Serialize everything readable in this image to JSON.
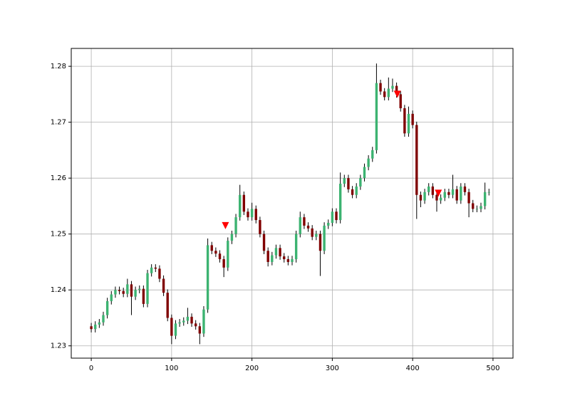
{
  "chart_data": {
    "type": "candlestick",
    "x": [
      0,
      5,
      10,
      15,
      20,
      25,
      30,
      35,
      40,
      45,
      50,
      55,
      60,
      65,
      70,
      75,
      80,
      85,
      90,
      95,
      100,
      105,
      110,
      115,
      120,
      125,
      130,
      135,
      140,
      145,
      150,
      155,
      160,
      165,
      170,
      175,
      180,
      185,
      190,
      195,
      200,
      205,
      210,
      215,
      220,
      225,
      230,
      235,
      240,
      245,
      250,
      255,
      260,
      265,
      270,
      275,
      280,
      285,
      290,
      295,
      300,
      305,
      310,
      315,
      320,
      325,
      330,
      335,
      340,
      345,
      350,
      355,
      360,
      365,
      370,
      375,
      380,
      385,
      390,
      395,
      400,
      405,
      410,
      415,
      420,
      425,
      430,
      435,
      440,
      445,
      450,
      455,
      460,
      465,
      470,
      475,
      480,
      485,
      490,
      495
    ],
    "open": [
      1.2335,
      1.233,
      1.2338,
      1.2342,
      1.2355,
      1.238,
      1.2392,
      1.24,
      1.2398,
      1.2393,
      1.241,
      1.2388,
      1.24,
      1.2402,
      1.2375,
      1.243,
      1.244,
      1.2438,
      1.242,
      1.2395,
      1.235,
      1.2318,
      1.234,
      1.2342,
      1.2345,
      1.2352,
      1.234,
      1.2335,
      1.2322,
      1.2365,
      1.248,
      1.247,
      1.2465,
      1.2455,
      1.244,
      1.2488,
      1.25,
      1.253,
      1.257,
      1.254,
      1.253,
      1.2545,
      1.2525,
      1.25,
      1.247,
      1.245,
      1.2462,
      1.2475,
      1.246,
      1.2455,
      1.245,
      1.2455,
      1.25,
      1.253,
      1.2515,
      1.251,
      1.2495,
      1.25,
      1.247,
      1.2515,
      1.252,
      1.254,
      1.2525,
      1.259,
      1.26,
      1.258,
      1.257,
      1.2585,
      1.26,
      1.262,
      1.2635,
      1.265,
      1.277,
      1.2755,
      1.2745,
      1.276,
      1.2765,
      1.275,
      1.2725,
      1.268,
      1.2715,
      1.2695,
      1.257,
      1.256,
      1.2575,
      1.2585,
      1.257,
      1.256,
      1.2565,
      1.2575,
      1.257,
      1.258,
      1.256,
      1.2585,
      1.2575,
      1.2555,
      1.2545,
      1.2545,
      1.255,
      1.2575
    ],
    "high": [
      1.2341,
      1.2344,
      1.2348,
      1.2361,
      1.2386,
      1.2398,
      1.2406,
      1.2406,
      1.2404,
      1.242,
      1.2416,
      1.2406,
      1.2408,
      1.2408,
      1.2436,
      1.2446,
      1.2446,
      1.2444,
      1.2426,
      1.2401,
      1.2356,
      1.2346,
      1.2348,
      1.2351,
      1.2368,
      1.2358,
      1.2346,
      1.2341,
      1.2371,
      1.2492,
      1.2486,
      1.2476,
      1.2471,
      1.2461,
      1.2494,
      1.2506,
      1.2536,
      1.2588,
      1.2576,
      1.2546,
      1.2556,
      1.2551,
      1.2531,
      1.2506,
      1.2476,
      1.2468,
      1.2481,
      1.2481,
      1.2466,
      1.2461,
      1.2461,
      1.2506,
      1.254,
      1.2536,
      1.2521,
      1.2516,
      1.2506,
      1.2506,
      1.2521,
      1.2526,
      1.2546,
      1.2546,
      1.261,
      1.2606,
      1.2606,
      1.2586,
      1.2591,
      1.2606,
      1.2626,
      1.2641,
      1.2656,
      1.2805,
      1.2776,
      1.2761,
      1.278,
      1.2778,
      1.2771,
      1.2756,
      1.2731,
      1.2728,
      1.2721,
      1.2701,
      1.2576,
      1.2581,
      1.2591,
      1.2591,
      1.2576,
      1.2571,
      1.2581,
      1.2581,
      1.2606,
      1.2586,
      1.2591,
      1.2591,
      1.2581,
      1.2561,
      1.2551,
      1.2556,
      1.2592,
      1.2581
    ],
    "low": [
      1.2324,
      1.2324,
      1.2332,
      1.2336,
      1.2349,
      1.2374,
      1.2386,
      1.2392,
      1.2387,
      1.2387,
      1.2355,
      1.2382,
      1.2394,
      1.2369,
      1.2369,
      1.2424,
      1.2432,
      1.2414,
      1.2389,
      1.2344,
      1.2303,
      1.2312,
      1.2334,
      1.2336,
      1.2339,
      1.2334,
      1.2329,
      1.2303,
      1.2316,
      1.2359,
      1.2464,
      1.2459,
      1.2449,
      1.2423,
      1.2434,
      1.2482,
      1.2494,
      1.2524,
      1.2534,
      1.2524,
      1.2524,
      1.2519,
      1.2494,
      1.2464,
      1.2442,
      1.2444,
      1.2456,
      1.2454,
      1.2449,
      1.2444,
      1.2444,
      1.2449,
      1.2494,
      1.2509,
      1.2504,
      1.2489,
      1.2489,
      1.2425,
      1.2464,
      1.2509,
      1.2514,
      1.2519,
      1.2519,
      1.2584,
      1.2574,
      1.2564,
      1.2564,
      1.2579,
      1.2594,
      1.2614,
      1.2629,
      1.2644,
      1.2749,
      1.2739,
      1.2739,
      1.2754,
      1.2744,
      1.2719,
      1.2674,
      1.2674,
      1.2689,
      1.2527,
      1.2548,
      1.2554,
      1.2569,
      1.2564,
      1.254,
      1.2554,
      1.2559,
      1.2564,
      1.2564,
      1.2554,
      1.2554,
      1.2569,
      1.253,
      1.2539,
      1.2539,
      1.2539,
      1.2544,
      1.2569
    ],
    "close": [
      1.233,
      1.2338,
      1.2342,
      1.2355,
      1.238,
      1.2392,
      1.24,
      1.2398,
      1.2393,
      1.241,
      1.2388,
      1.24,
      1.2402,
      1.2375,
      1.243,
      1.244,
      1.2438,
      1.242,
      1.2395,
      1.235,
      1.2318,
      1.234,
      1.2342,
      1.2345,
      1.2352,
      1.234,
      1.2335,
      1.2322,
      1.2365,
      1.248,
      1.247,
      1.2465,
      1.2455,
      1.244,
      1.2488,
      1.25,
      1.253,
      1.257,
      1.254,
      1.253,
      1.2545,
      1.2525,
      1.25,
      1.247,
      1.245,
      1.2462,
      1.2475,
      1.246,
      1.2455,
      1.245,
      1.2455,
      1.25,
      1.253,
      1.2515,
      1.251,
      1.2495,
      1.25,
      1.247,
      1.2515,
      1.252,
      1.254,
      1.2525,
      1.259,
      1.26,
      1.258,
      1.257,
      1.2585,
      1.26,
      1.262,
      1.2635,
      1.265,
      1.277,
      1.2755,
      1.2745,
      1.276,
      1.2765,
      1.275,
      1.2725,
      1.268,
      1.2715,
      1.2695,
      1.257,
      1.256,
      1.2575,
      1.2585,
      1.257,
      1.256,
      1.2565,
      1.2575,
      1.257,
      1.258,
      1.256,
      1.2585,
      1.2575,
      1.2555,
      1.2545,
      1.2545,
      1.255,
      1.2575,
      1.2575
    ],
    "up_color": "#3cb371",
    "down_color": "#800000",
    "wick_color": "#000000",
    "signals": {
      "x": [
        167,
        381,
        432
      ],
      "y": [
        1.2515,
        1.275,
        1.2573
      ],
      "color": "#ff0000"
    },
    "xlim": [
      -24.9,
      524.9
    ],
    "ylim": [
      1.2278,
      1.2832
    ],
    "xticks": [
      0,
      100,
      200,
      300,
      400,
      500
    ],
    "yticks": [
      1.23,
      1.24,
      1.25,
      1.26,
      1.27,
      1.28
    ],
    "grid": true
  }
}
